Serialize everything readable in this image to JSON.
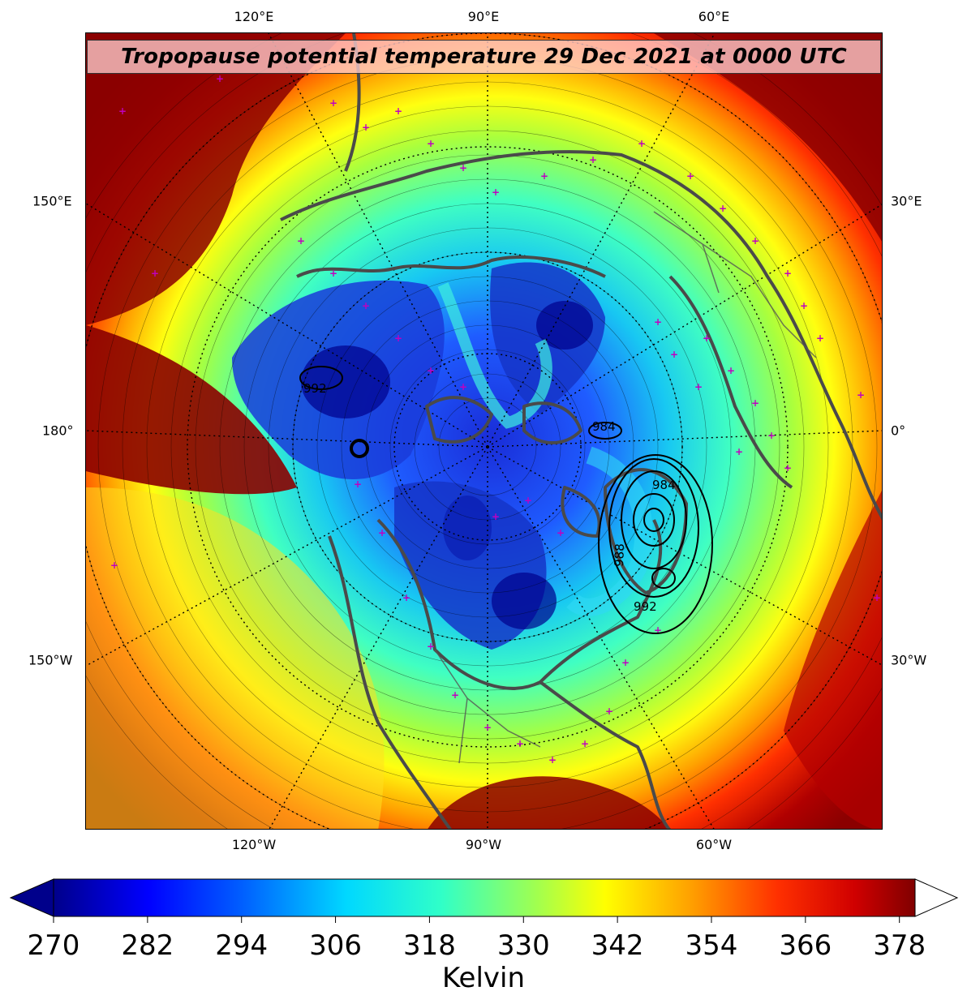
{
  "map": {
    "title": "Tropopause potential temperature 29 Dec 2021 at 0000 UTC",
    "top_lon_labels": [
      "120°E",
      "90°E",
      "60°E"
    ],
    "bottom_lon_labels": [
      "120°W",
      "90°W",
      "60°W"
    ],
    "left_lat_labels": [
      "150°E",
      "180°",
      "150°W"
    ],
    "right_lat_labels": [
      "30°E",
      "0°",
      "30°W"
    ],
    "pressure_contour_labels": [
      "992",
      "988",
      "992",
      "984",
      "984"
    ],
    "colors": {
      "coldest": "#00008b",
      "cold": "#0050ff",
      "cool": "#00d0ff",
      "mid": "#3dffc0",
      "warm": "#a0ff40",
      "yellow": "#ffff00",
      "orange": "#ff9000",
      "hot": "#ff2000",
      "hottest": "#8b0000",
      "coastline": "#4a4a4a",
      "station_marker": "#c000c0"
    }
  },
  "colorbar": {
    "ticks": [
      "270",
      "282",
      "294",
      "306",
      "318",
      "330",
      "342",
      "354",
      "366",
      "378"
    ],
    "label": "Kelvin",
    "min": 270,
    "max": 380
  }
}
